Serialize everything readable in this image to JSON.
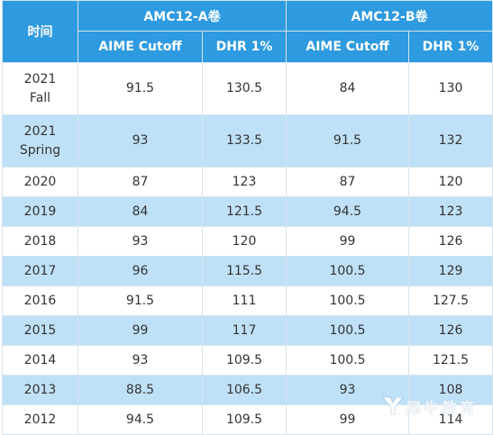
{
  "table": {
    "header": {
      "time": "时间",
      "group_a": "AMC12-A卷",
      "group_b": "AMC12-B卷",
      "a_cutoff": "AIME Cutoff",
      "a_dhr": "DHR 1%",
      "b_cutoff": "AIME Cutoff",
      "b_dhr": "DHR 1%"
    },
    "rows": [
      {
        "time_line1": "2021",
        "time_line2": "Fall",
        "a_cutoff": "91.5",
        "a_dhr": "130.5",
        "b_cutoff": "84",
        "b_dhr": "130"
      },
      {
        "time_line1": "2021",
        "time_line2": "Spring",
        "a_cutoff": "93",
        "a_dhr": "133.5",
        "b_cutoff": "91.5",
        "b_dhr": "132"
      },
      {
        "time": "2020",
        "a_cutoff": "87",
        "a_dhr": "123",
        "b_cutoff": "87",
        "b_dhr": "120"
      },
      {
        "time": "2019",
        "a_cutoff": "84",
        "a_dhr": "121.5",
        "b_cutoff": "94.5",
        "b_dhr": "123"
      },
      {
        "time": "2018",
        "a_cutoff": "93",
        "a_dhr": "120",
        "b_cutoff": "99",
        "b_dhr": "126"
      },
      {
        "time": "2017",
        "a_cutoff": "96",
        "a_dhr": "115.5",
        "b_cutoff": "100.5",
        "b_dhr": "129"
      },
      {
        "time": "2016",
        "a_cutoff": "91.5",
        "a_dhr": "111",
        "b_cutoff": "100.5",
        "b_dhr": "127.5"
      },
      {
        "time": "2015",
        "a_cutoff": "99",
        "a_dhr": "117",
        "b_cutoff": "100.5",
        "b_dhr": "126"
      },
      {
        "time": "2014",
        "a_cutoff": "93",
        "a_dhr": "109.5",
        "b_cutoff": "100.5",
        "b_dhr": "121.5"
      },
      {
        "time": "2013",
        "a_cutoff": "88.5",
        "a_dhr": "106.5",
        "b_cutoff": "93",
        "b_dhr": "108"
      },
      {
        "time": "2012",
        "a_cutoff": "94.5",
        "a_dhr": "109.5",
        "b_cutoff": "99",
        "b_dhr": "114"
      }
    ]
  },
  "watermark": {
    "text": "犀牛教育",
    "icon": "rhino-logo-icon"
  },
  "colors": {
    "header_bg": "#2e9ae0",
    "stripe_bg": "#bfe1f7",
    "border": "#d6e4ee",
    "text": "#333333"
  }
}
